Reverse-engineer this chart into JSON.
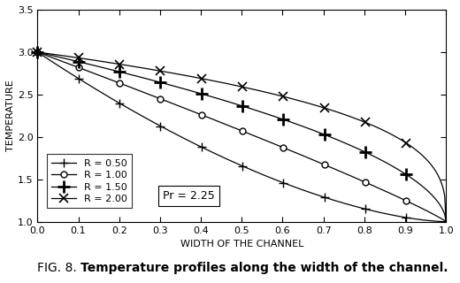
{
  "title_normal": "FIG. 8. ",
  "title_bold": "Temperature profiles along the width of the channel.",
  "xlabel": "WIDTH OF THE CHANNEL",
  "ylabel": "TEMPERATURE",
  "xlim": [
    0,
    1
  ],
  "ylim": [
    1,
    3.5
  ],
  "xticks": [
    0.0,
    0.1,
    0.2,
    0.3,
    0.4,
    0.5,
    0.6,
    0.7,
    0.8,
    0.9,
    1.0
  ],
  "yticks": [
    1.0,
    1.5,
    2.0,
    2.5,
    3.0,
    3.5
  ],
  "annotation": "Pr = 2.25",
  "n_values": {
    "0.50": 1.6,
    "1.00": 0.9,
    "1.50": 0.55,
    "2.00": 0.33
  },
  "markers_info": [
    {
      "R": 0.5,
      "label": "R = 0.50",
      "marker": "+",
      "ms": 7,
      "mew": 1.0,
      "mfc": "black"
    },
    {
      "R": 1.0,
      "label": "R = 1.00",
      "marker": "o",
      "ms": 5,
      "mew": 1.0,
      "mfc": "white"
    },
    {
      "R": 1.5,
      "label": "R = 1.50",
      "marker": "+",
      "ms": 10,
      "mew": 2.0,
      "mfc": "black"
    },
    {
      "R": 2.0,
      "label": "R = 2.00",
      "marker": "x",
      "ms": 7,
      "mew": 1.2,
      "mfc": "black"
    }
  ],
  "num_points": 300,
  "marker_every": 30,
  "linewidth": 0.9,
  "background_color": "#ffffff"
}
